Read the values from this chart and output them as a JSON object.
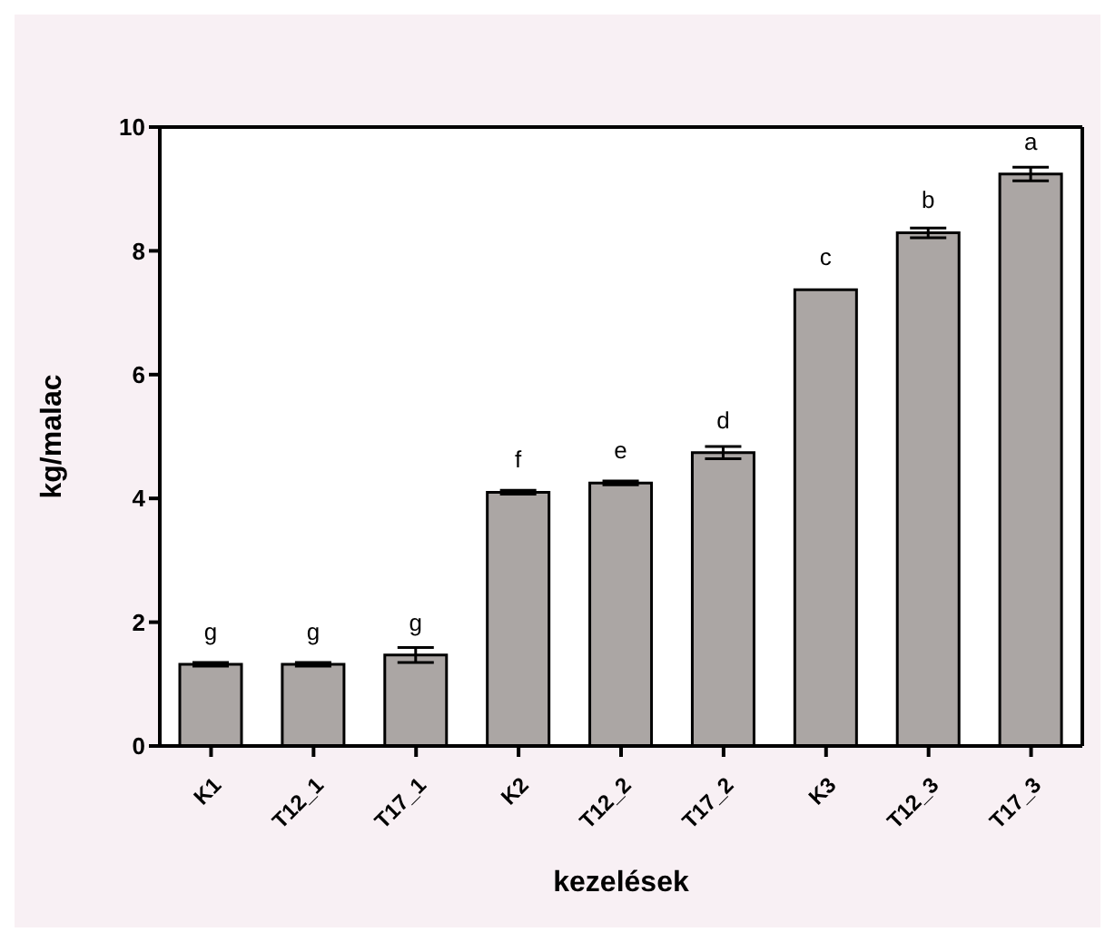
{
  "chart_data": {
    "type": "bar",
    "xlabel": "kezelések",
    "ylabel": "kg/malac",
    "categories": [
      "K1",
      "T12_1",
      "T17_1",
      "K2",
      "T12_2",
      "T17_2",
      "K3",
      "T12_3",
      "T17_3"
    ],
    "values": [
      1.32,
      1.32,
      1.47,
      4.1,
      4.25,
      4.74,
      7.37,
      8.29,
      9.24
    ],
    "errors": [
      0.03,
      0.03,
      0.12,
      0.03,
      0.03,
      0.1,
      null,
      0.08,
      0.11
    ],
    "color": "#aba6a4",
    "ylim": [
      0,
      10
    ],
    "yticks": [
      0,
      2,
      4,
      6,
      8,
      10
    ],
    "grid": false,
    "annotations": [
      "g",
      "g",
      "g",
      "f",
      "e",
      "d",
      "c",
      "b",
      "a"
    ]
  }
}
